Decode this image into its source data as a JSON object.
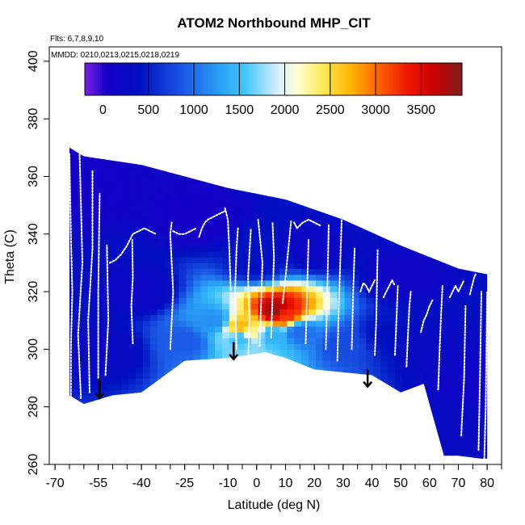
{
  "chart_data": {
    "type": "heatmap",
    "title": "ATOM2 Northbound MHP_CIT",
    "note_flights": "Flts: 6,7,8,9,10",
    "note_dates": "MMDD: 0210,0213,0215,0218,0219",
    "xlabel": "Latitude (deg N)",
    "ylabel": "Theta (C)",
    "xlim": [
      -72,
      85
    ],
    "ylim": [
      260,
      405
    ],
    "x_ticks": [
      -70,
      -55,
      -40,
      -25,
      -10,
      0,
      10,
      20,
      30,
      40,
      50,
      60,
      70,
      80
    ],
    "x_tick_labels": [
      "-70",
      "-55",
      "-40",
      "-25",
      "-10",
      "0",
      "10",
      "20",
      "30",
      "40",
      "50",
      "60",
      "70",
      "80"
    ],
    "x_minor_step": 5,
    "y_ticks": [
      260,
      280,
      300,
      320,
      340,
      360,
      380,
      400
    ],
    "y_tick_labels": [
      "260",
      "280",
      "300",
      "320",
      "340",
      "360",
      "380",
      "400"
    ],
    "colorbar": {
      "min": -200,
      "max": 3950,
      "ticks": [
        0,
        500,
        1000,
        1500,
        2000,
        2500,
        3000,
        3500
      ],
      "tick_labels": [
        "0",
        "500",
        "1000",
        "1500",
        "2000",
        "2500",
        "3000",
        "3500"
      ],
      "colors": [
        "#7a1fe0",
        "#1500c8",
        "#0010c0",
        "#1c5ae8",
        "#2aa2f6",
        "#3fc4ff",
        "#dff2ff",
        "#ffffd0",
        "#ffe64a",
        "#ffb000",
        "#ff6a00",
        "#f01800",
        "#c80000",
        "#7e1f1c"
      ],
      "color_positions": [
        -200,
        50,
        400,
        900,
        1300,
        1550,
        1950,
        2150,
        2450,
        2750,
        3000,
        3350,
        3650,
        3950
      ]
    },
    "domain_top": [
      [
        -65,
        370
      ],
      [
        -60,
        367
      ],
      [
        -40,
        364
      ],
      [
        -10,
        356
      ],
      [
        10,
        352
      ],
      [
        30,
        345
      ],
      [
        50,
        336
      ],
      [
        70,
        328
      ],
      [
        80,
        326
      ]
    ],
    "domain_bottom": [
      [
        -65,
        284
      ],
      [
        -60,
        281
      ],
      [
        -50,
        284
      ],
      [
        -40,
        285
      ],
      [
        -25,
        296
      ],
      [
        -10,
        297
      ],
      [
        -3,
        298
      ],
      [
        3,
        299
      ],
      [
        10,
        297
      ],
      [
        20,
        293
      ],
      [
        40,
        291
      ],
      [
        50,
        285
      ],
      [
        58,
        288
      ],
      [
        65,
        263
      ],
      [
        70,
        263
      ],
      [
        78,
        262
      ],
      [
        80,
        262
      ]
    ],
    "value_field": [
      {
        "lat": -5,
        "theta": 308,
        "value": 2700
      },
      {
        "lat": -2,
        "theta": 306,
        "value": 2300
      },
      {
        "lat": 7,
        "theta": 313,
        "value": 3900
      },
      {
        "lat": 9,
        "theta": 312,
        "value": 3200
      },
      {
        "lat": -5,
        "theta": 304,
        "value": 1500
      },
      {
        "lat": -15,
        "theta": 310,
        "value": 1200
      },
      {
        "lat": 5,
        "theta": 305,
        "value": 1400
      },
      {
        "lat": 15,
        "theta": 306,
        "value": 1000
      },
      {
        "lat": -25,
        "theta": 303,
        "value": 900
      },
      {
        "lat": 30,
        "theta": 302,
        "value": 800
      },
      {
        "lat": 45,
        "theta": 305,
        "value": 400
      },
      {
        "lat": 60,
        "theta": 300,
        "value": 250
      },
      {
        "lat": -50,
        "theta": 300,
        "value": 250
      },
      {
        "lat": -40,
        "theta": 320,
        "value": 200
      },
      {
        "lat": 0,
        "theta": 330,
        "value": 400
      },
      {
        "lat": 20,
        "theta": 335,
        "value": 200
      },
      {
        "lat": -20,
        "theta": 345,
        "value": 50
      },
      {
        "lat": 50,
        "theta": 325,
        "value": 150
      },
      {
        "lat": 75,
        "theta": 290,
        "value": 150
      },
      {
        "lat": 70,
        "theta": 270,
        "value": 300
      },
      {
        "lat": -60,
        "theta": 355,
        "value": 80
      }
    ],
    "profile_tracks": [
      {
        "x": [
          -64.5,
          -64.5,
          -64,
          -64.5,
          -65
        ],
        "y": [
          282,
          300,
          320,
          340,
          368
        ]
      },
      {
        "x": [
          -61,
          -62,
          -60.5,
          -61,
          -61.5
        ],
        "y": [
          283,
          305,
          330,
          350,
          369
        ]
      },
      {
        "x": [
          -58,
          -58.5,
          -57,
          -57
        ],
        "y": [
          285,
          310,
          335,
          362
        ]
      },
      {
        "x": [
          -55,
          -55,
          -54.5
        ],
        "y": [
          290,
          320,
          354
        ]
      },
      {
        "x": [
          -52.5,
          -51.5,
          -52
        ],
        "y": [
          291,
          310,
          336
        ]
      },
      {
        "x": [
          -51,
          -49,
          -47,
          -45,
          -43,
          -41,
          -39,
          -37,
          -35
        ],
        "y": [
          330,
          331,
          333,
          336,
          340,
          341,
          342,
          341,
          340
        ]
      },
      {
        "x": [
          -43,
          -43.5,
          -43,
          -43.2
        ],
        "y": [
          302,
          315,
          325,
          338
        ]
      },
      {
        "x": [
          -30,
          -29,
          -30,
          -29.5
        ],
        "y": [
          300,
          320,
          340,
          344
        ]
      },
      {
        "x": [
          -29,
          -27,
          -25,
          -23,
          -21
        ],
        "y": [
          341,
          340,
          340,
          341,
          342
        ]
      },
      {
        "x": [
          -20,
          -19,
          -18,
          -17,
          -15,
          -13,
          -11
        ],
        "y": [
          339,
          342,
          344,
          345,
          346,
          347,
          348
        ]
      },
      {
        "x": [
          -11,
          -10,
          -9.5,
          -9
        ],
        "y": [
          349,
          345,
          335,
          320
        ]
      },
      {
        "x": [
          -7,
          -7.5,
          -7,
          -6.5
        ],
        "y": [
          300,
          320,
          335,
          342
        ]
      },
      {
        "x": [
          -3,
          -2.5,
          -3,
          -2
        ],
        "y": [
          295,
          310,
          325,
          342
        ]
      },
      {
        "x": [
          1,
          1.5,
          2,
          0.5
        ],
        "y": [
          301,
          315,
          330,
          345
        ]
      },
      {
        "x": [
          5,
          5.5,
          6,
          5.5
        ],
        "y": [
          304,
          318,
          332,
          344
        ]
      },
      {
        "x": [
          9,
          10,
          11,
          11.5,
          12
        ],
        "y": [
          316,
          325,
          335,
          340,
          345
        ]
      },
      {
        "x": [
          13,
          14,
          16,
          18,
          20,
          22
        ],
        "y": [
          344,
          342,
          344,
          345,
          344,
          343
        ]
      },
      {
        "x": [
          17,
          17.5,
          18
        ],
        "y": [
          302,
          320,
          338
        ]
      },
      {
        "x": [
          24,
          24.5,
          25
        ],
        "y": [
          300,
          320,
          343
        ]
      },
      {
        "x": [
          28,
          28.5,
          29,
          29.5
        ],
        "y": [
          296,
          315,
          330,
          345
        ]
      },
      {
        "x": [
          33,
          33.5,
          34
        ],
        "y": [
          300,
          320,
          335
        ]
      },
      {
        "x": [
          36,
          37,
          38,
          39,
          40,
          41
        ],
        "y": [
          320,
          323,
          322,
          320,
          322,
          324
        ]
      },
      {
        "x": [
          41,
          41.5,
          42
        ],
        "y": [
          298,
          310,
          335
        ]
      },
      {
        "x": [
          44,
          45,
          46,
          47,
          48
        ],
        "y": [
          318,
          320,
          322,
          324,
          322
        ]
      },
      {
        "x": [
          48,
          48.5,
          49
        ],
        "y": [
          298,
          310,
          322
        ]
      },
      {
        "x": [
          52,
          52.5,
          53,
          53.5
        ],
        "y": [
          294,
          305,
          315,
          320
        ]
      },
      {
        "x": [
          57,
          58,
          59,
          60,
          61
        ],
        "y": [
          306,
          310,
          312,
          315,
          317
        ]
      },
      {
        "x": [
          63,
          63.5,
          64,
          64.5
        ],
        "y": [
          286,
          300,
          312,
          322
        ]
      },
      {
        "x": [
          67,
          68,
          69,
          70,
          71,
          72
        ],
        "y": [
          318,
          320,
          322,
          320,
          322,
          324
        ]
      },
      {
        "x": [
          71,
          72,
          72.5
        ],
        "y": [
          270,
          290,
          315
        ]
      },
      {
        "x": [
          74,
          74.5,
          75,
          75.5,
          76
        ],
        "y": [
          319,
          321,
          323,
          325,
          326
        ]
      },
      {
        "x": [
          77,
          77.5,
          78
        ],
        "y": [
          265,
          290,
          320
        ]
      },
      {
        "x": [
          79,
          79.5,
          80
        ],
        "y": [
          262,
          280,
          320
        ]
      }
    ],
    "arrows": [
      {
        "lat": -54.5,
        "theta_top": 290,
        "theta_tip": 283
      },
      {
        "lat": -8,
        "theta_top": 302.5,
        "theta_tip": 296.5
      },
      {
        "lat": 38.5,
        "theta_top": 293,
        "theta_tip": 287
      }
    ]
  }
}
